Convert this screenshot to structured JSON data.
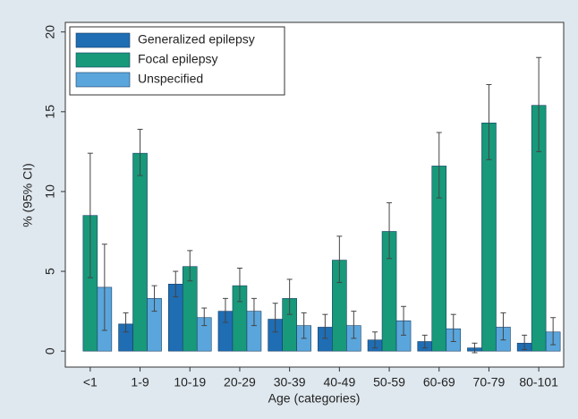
{
  "chart_data": {
    "type": "bar",
    "x_label": "Age (categories)",
    "y_label": "% (95% CI)",
    "categories": [
      "<1",
      "1-9",
      "10-19",
      "20-29",
      "30-39",
      "40-49",
      "50-59",
      "60-69",
      "70-79",
      "80-101"
    ],
    "series": [
      {
        "name": "Generalized epilepsy",
        "color": "#1f6db3",
        "values": [
          null,
          1.7,
          4.2,
          2.5,
          2.0,
          1.5,
          0.7,
          0.6,
          0.2,
          0.5
        ],
        "ci_low": [
          null,
          1.2,
          3.4,
          1.8,
          1.2,
          0.8,
          0.2,
          0.2,
          -0.1,
          0.1
        ],
        "ci_high": [
          null,
          2.4,
          5.0,
          3.3,
          3.0,
          2.3,
          1.2,
          1.0,
          0.5,
          1.0
        ]
      },
      {
        "name": "Focal epilepsy",
        "color": "#17997a",
        "values": [
          8.5,
          12.4,
          5.3,
          4.1,
          3.3,
          5.7,
          7.5,
          11.6,
          14.3,
          15.4
        ],
        "ci_low": [
          4.6,
          11.0,
          4.4,
          3.1,
          2.3,
          4.3,
          5.8,
          9.6,
          12.0,
          12.5
        ],
        "ci_high": [
          12.4,
          13.9,
          6.3,
          5.2,
          4.5,
          7.2,
          9.3,
          13.7,
          16.7,
          18.4
        ]
      },
      {
        "name": "Unspecified",
        "color": "#5aa6dc",
        "values": [
          4.0,
          3.3,
          2.1,
          2.5,
          1.6,
          1.6,
          1.9,
          1.4,
          1.5,
          1.2
        ],
        "ci_low": [
          1.3,
          2.5,
          1.6,
          1.6,
          0.8,
          0.8,
          1.0,
          0.6,
          0.7,
          0.4
        ],
        "ci_high": [
          6.7,
          4.1,
          2.7,
          3.3,
          2.4,
          2.5,
          2.8,
          2.3,
          2.4,
          2.1
        ]
      }
    ],
    "ylim": [
      -1,
      20.6
    ],
    "yticks": [
      0,
      5,
      10,
      15,
      20
    ],
    "grid": false,
    "legend": "top-left"
  }
}
